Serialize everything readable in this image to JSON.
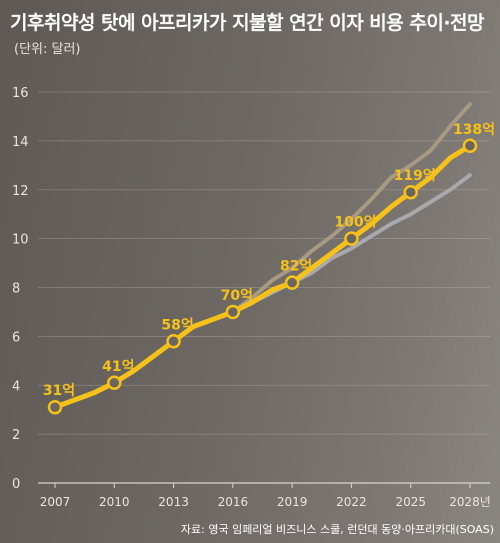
{
  "title": "기후취약성 탓에 아프리카가 지불할 연간 이자 비용 추이·전망",
  "unit": "(단위: 달러)",
  "source": "자료: 영국 임페리얼 비즈니스 스쿨, 런던대 동양·아프리카대(SOAS)",
  "colors": {
    "main": "#f6c21a",
    "upper": "#a89a82",
    "lower": "#a8a8ad",
    "text": "#e8e4de"
  },
  "chart_data": {
    "type": "line",
    "title": "기후취약성 탓에 아프리카가 지불할 연간 이자 비용 추이·전망",
    "ylabel": "(단위: 달러)",
    "xlabel": "",
    "ylim": [
      0,
      16
    ],
    "xlim": [
      2007,
      2028
    ],
    "y_ticks": [
      "0",
      "2",
      "4",
      "6",
      "8",
      "10",
      "12",
      "14",
      "16"
    ],
    "x_ticks": [
      "2007",
      "2010",
      "2013",
      "2016",
      "2019",
      "2022",
      "2025",
      "2028년"
    ],
    "grid": true,
    "series": [
      {
        "role": "main",
        "x": [
          2007,
          2008,
          2009,
          2010,
          2011,
          2012,
          2013,
          2014,
          2015,
          2016,
          2017,
          2018,
          2019,
          2020,
          2021,
          2022,
          2023,
          2024,
          2025,
          2026,
          2027,
          2028
        ],
        "values": [
          3.1,
          3.4,
          3.7,
          4.1,
          4.6,
          5.2,
          5.8,
          6.4,
          6.7,
          7.0,
          7.4,
          7.9,
          8.2,
          8.8,
          9.4,
          10.0,
          10.6,
          11.3,
          11.9,
          12.5,
          13.3,
          13.8
        ],
        "labeled_points": [
          {
            "x": 2007,
            "y": 3.1,
            "label": "31억"
          },
          {
            "x": 2010,
            "y": 4.1,
            "label": "41억"
          },
          {
            "x": 2013,
            "y": 5.8,
            "label": "58억"
          },
          {
            "x": 2016,
            "y": 7.0,
            "label": "70억"
          },
          {
            "x": 2019,
            "y": 8.2,
            "label": "82억"
          },
          {
            "x": 2022,
            "y": 10.0,
            "label": "100억"
          },
          {
            "x": 2025,
            "y": 11.9,
            "label": "119억"
          },
          {
            "x": 2028,
            "y": 13.8,
            "label": "138억"
          }
        ]
      },
      {
        "role": "upper",
        "x": [
          2016,
          2017,
          2018,
          2019,
          2020,
          2021,
          2022,
          2023,
          2024,
          2025,
          2026,
          2027,
          2028
        ],
        "values": [
          7.0,
          7.6,
          8.3,
          8.8,
          9.5,
          10.1,
          10.8,
          11.6,
          12.5,
          13.0,
          13.6,
          14.6,
          15.5
        ]
      },
      {
        "role": "lower",
        "x": [
          2016,
          2017,
          2018,
          2019,
          2020,
          2021,
          2022,
          2023,
          2024,
          2025,
          2026,
          2027,
          2028
        ],
        "values": [
          7.0,
          7.4,
          7.8,
          8.2,
          8.6,
          9.2,
          9.6,
          10.1,
          10.6,
          11.0,
          11.5,
          12.0,
          12.6
        ]
      }
    ]
  }
}
